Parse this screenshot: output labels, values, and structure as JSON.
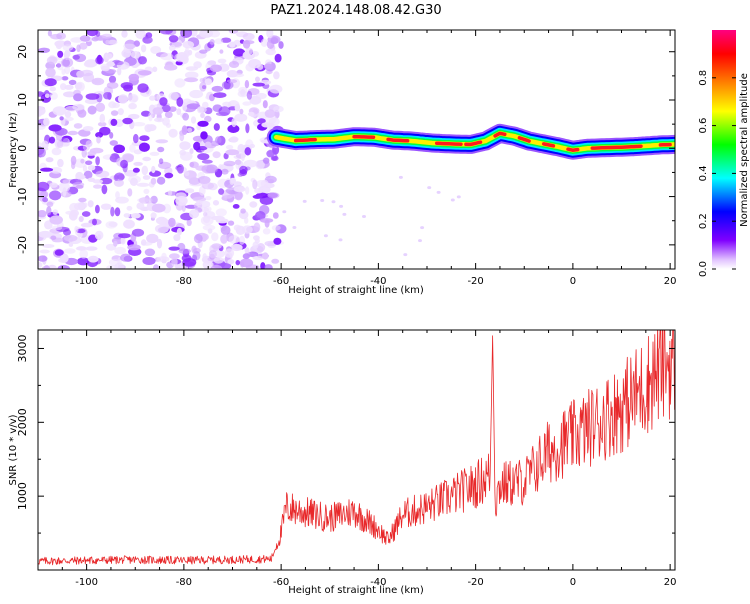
{
  "title": "PAZ1.2024.148.08.42.G30",
  "chart_data": [
    {
      "type": "heatmap",
      "xlabel": "Height of straight line (km)",
      "ylabel": "Frequency (Hz)",
      "xlim": [
        -110,
        21
      ],
      "ylim": [
        -25,
        24.5
      ],
      "xticks": [
        -100,
        -80,
        -60,
        -40,
        -20,
        0,
        20
      ],
      "yticks": [
        -20,
        -10,
        0,
        10,
        20
      ],
      "noise_region_x": [
        -110,
        -61
      ],
      "ridge": {
        "x": [
          -61,
          -57,
          -53,
          -49,
          -45,
          -41,
          -37,
          -33,
          -29,
          -25,
          -21,
          -18,
          -15,
          -12,
          -9,
          -6,
          -3,
          0,
          3,
          6,
          9,
          12,
          15,
          18,
          21
        ],
        "y": [
          2.3,
          1.6,
          1.8,
          1.9,
          2.4,
          2.3,
          1.7,
          1.5,
          1.1,
          0.9,
          0.8,
          1.5,
          3.1,
          2.5,
          1.5,
          0.9,
          0.3,
          -0.4,
          0.0,
          0.1,
          0.2,
          0.3,
          0.5,
          0.7,
          0.8
        ]
      },
      "colorbar": {
        "label": "Normalized spectral amplitude",
        "range": [
          0,
          1
        ],
        "ticks": [
          0.0,
          0.2,
          0.4,
          0.6,
          0.8
        ],
        "colors": [
          "#ffffff",
          "#e0c0ff",
          "#8000ff",
          "#0000ff",
          "#00ffff",
          "#00ff00",
          "#ffff00",
          "#ff8000",
          "#ff0000",
          "#ff0080"
        ]
      }
    },
    {
      "type": "line",
      "xlabel": "Height of straight line (km)",
      "ylabel": "SNR (10 * v/v)",
      "xlim": [
        -110,
        21
      ],
      "ylim": [
        0,
        3250
      ],
      "xticks": [
        -100,
        -80,
        -60,
        -40,
        -20,
        0,
        20
      ],
      "yticks": [
        1000,
        2000,
        3000
      ],
      "series": [
        {
          "color": "#e8282a",
          "x": [
            -110,
            -100,
            -90,
            -80,
            -70,
            -62,
            -60,
            -59,
            -55,
            -50,
            -45,
            -40,
            -38,
            -35,
            -30,
            -25,
            -20,
            -17,
            -16.5,
            -16,
            -15,
            -10,
            -5,
            0,
            5,
            10,
            15,
            18,
            21
          ],
          "values": [
            120,
            130,
            140,
            130,
            140,
            150,
            500,
            850,
            780,
            700,
            800,
            550,
            400,
            750,
            850,
            1000,
            1150,
            1300,
            3250,
            900,
            1150,
            1200,
            1600,
            1800,
            2000,
            2200,
            2500,
            2750,
            2850
          ]
        }
      ]
    }
  ]
}
